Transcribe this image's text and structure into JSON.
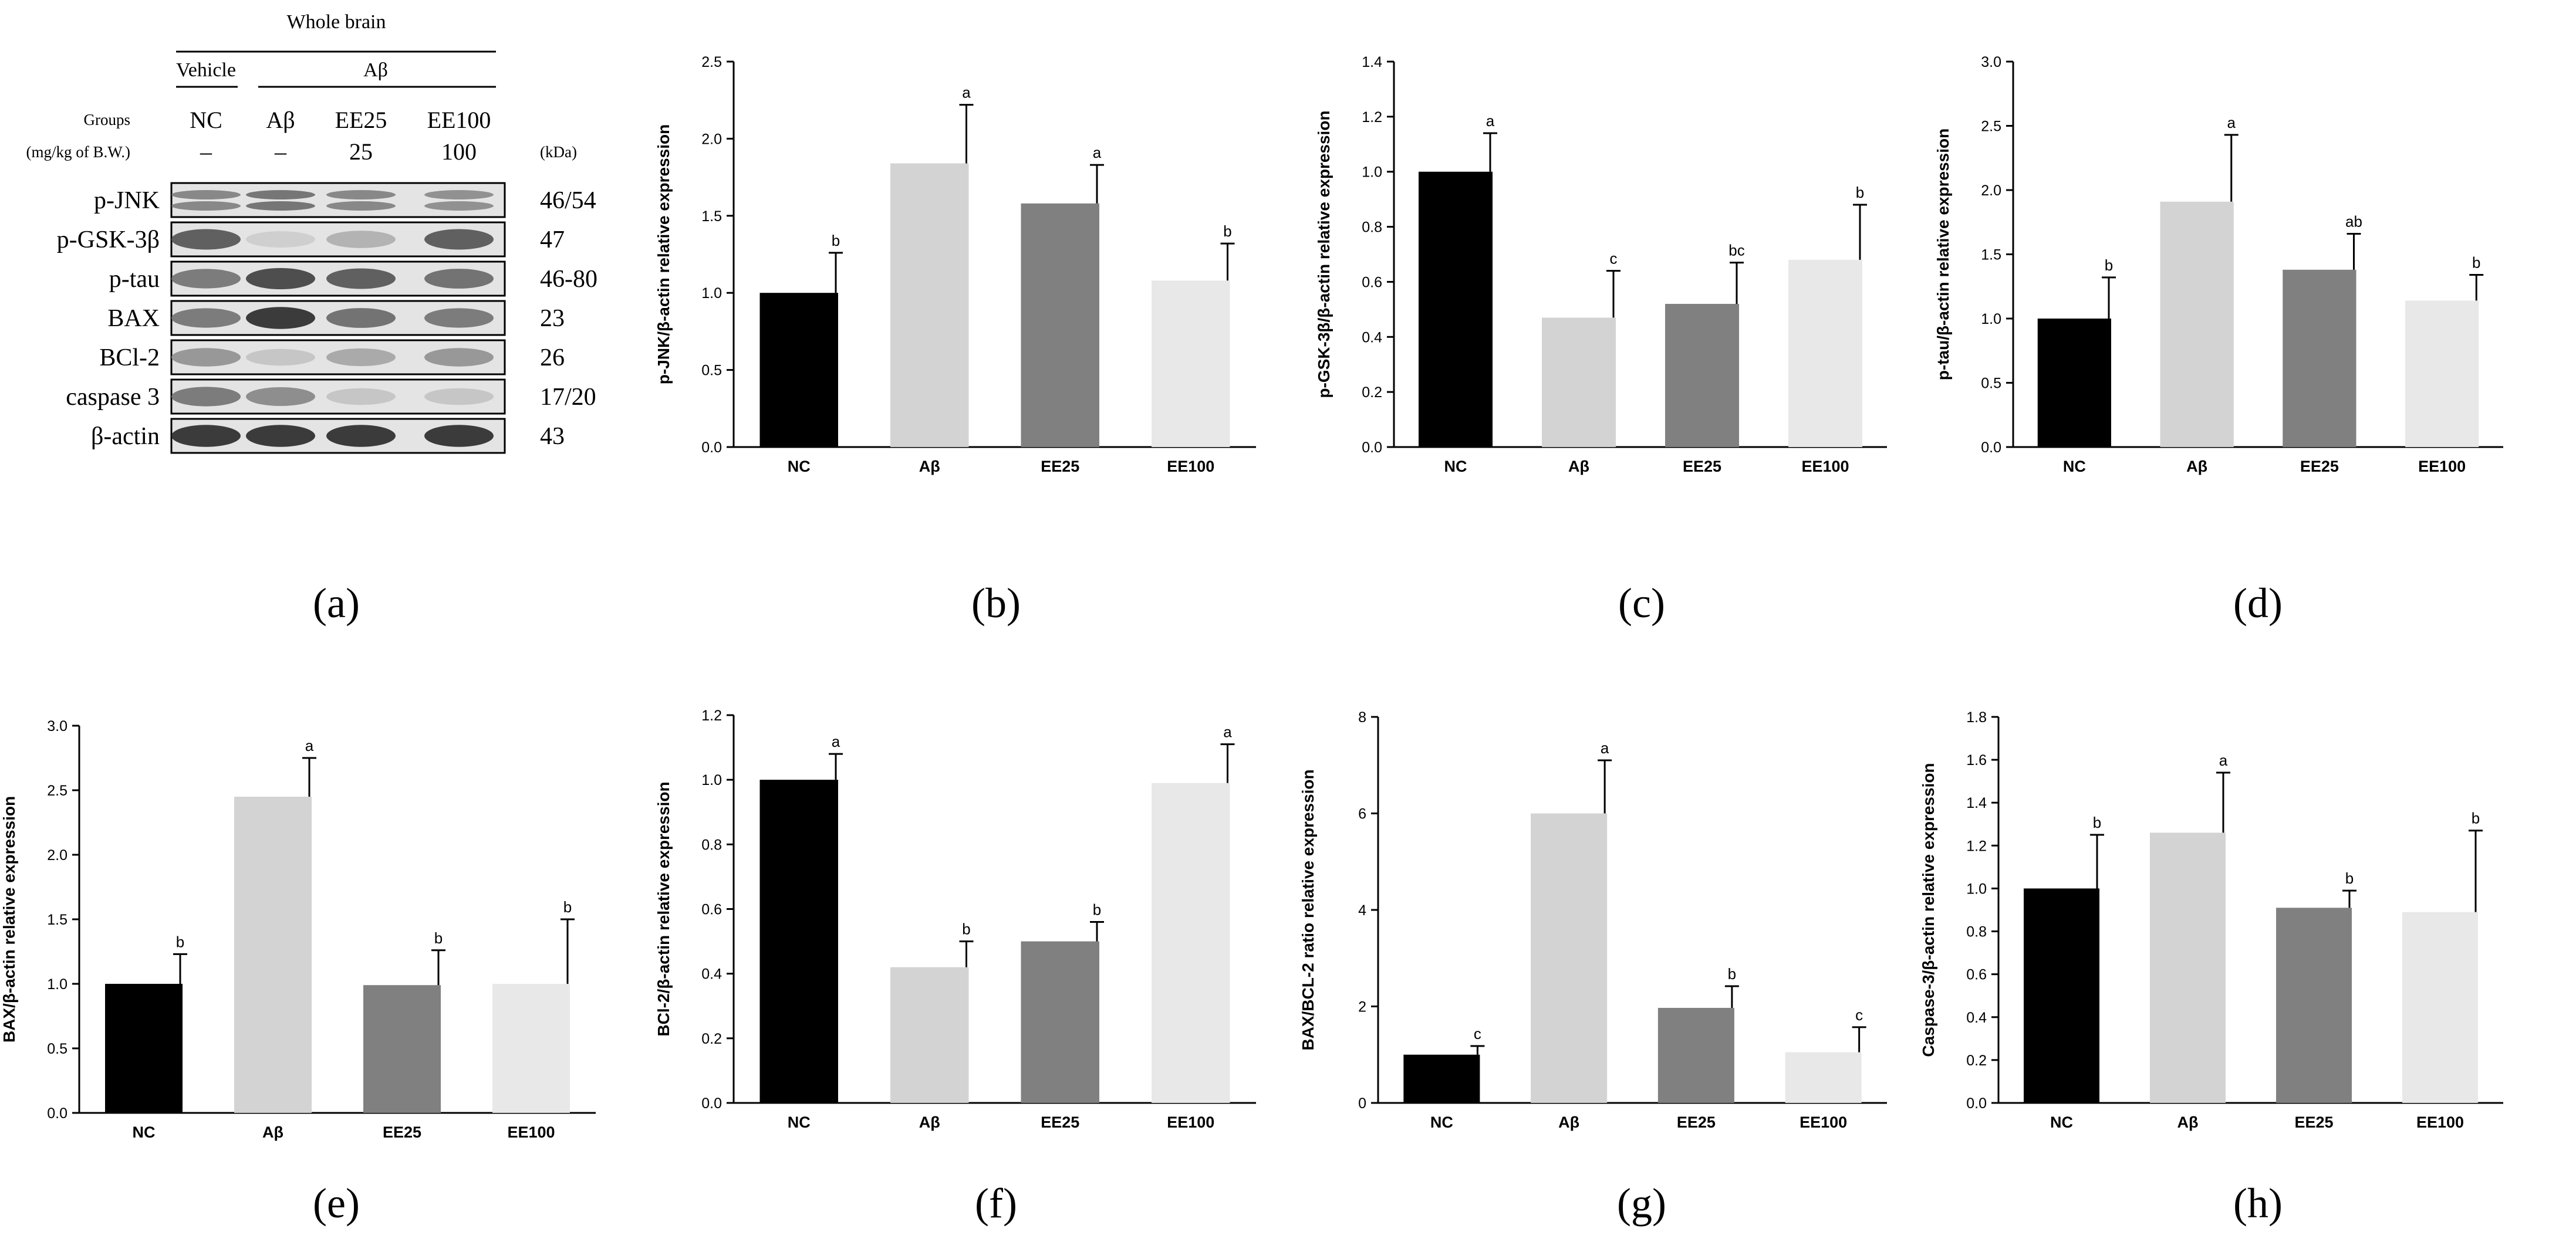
{
  "blot": {
    "header": "Whole brain",
    "vehicle_label": "Vehicle",
    "abeta_label": "Aβ",
    "groups_label": "Groups",
    "dose_label": "(mg/kg of B.W.)",
    "kda_label": "(kDa)",
    "columns": [
      {
        "group": "NC",
        "dose": "–"
      },
      {
        "group": "Aβ",
        "dose": "–"
      },
      {
        "group": "EE25",
        "dose": "25"
      },
      {
        "group": "EE100",
        "dose": "100"
      }
    ],
    "rows": [
      {
        "protein": "p-JNK",
        "kda": "46/54",
        "intensity": [
          0.55,
          0.65,
          0.55,
          0.5
        ],
        "double": true
      },
      {
        "protein": "p-GSK-3β",
        "kda": "47",
        "intensity": [
          0.75,
          0.15,
          0.3,
          0.75
        ],
        "double": false
      },
      {
        "protein": "p-tau",
        "kda": "46-80",
        "intensity": [
          0.6,
          0.85,
          0.75,
          0.65
        ],
        "double": false
      },
      {
        "protein": "BAX",
        "kda": "23",
        "intensity": [
          0.6,
          0.95,
          0.65,
          0.6
        ],
        "double": false
      },
      {
        "protein": "BCl-2",
        "kda": "26",
        "intensity": [
          0.45,
          0.2,
          0.35,
          0.45
        ],
        "double": false
      },
      {
        "protein": "caspase 3",
        "kda": "17/20",
        "intensity": [
          0.6,
          0.5,
          0.2,
          0.2
        ],
        "double": false
      },
      {
        "protein": "β-actin",
        "kda": "43",
        "intensity": [
          0.95,
          0.95,
          0.95,
          0.95
        ],
        "double": false
      }
    ]
  },
  "panel_labels": [
    "(a)",
    "(b)",
    "(c)",
    "(d)",
    "(e)",
    "(f)",
    "(g)",
    "(h)"
  ],
  "colors": [
    "#000000",
    "#d3d3d3",
    "#808080",
    "#e8e8e8"
  ],
  "chart_data": [
    {
      "panel": "b",
      "type": "bar",
      "categories": [
        "NC",
        "Aβ",
        "EE25",
        "EE100"
      ],
      "ylabel": "p-JNK/β-actin relative expression",
      "ylim": [
        0,
        2.5
      ],
      "ticks": [
        0.0,
        0.5,
        1.0,
        1.5,
        2.0,
        2.5
      ],
      "tick_labels": [
        "0.0",
        "0.5",
        "1.0",
        "1.5",
        "2.0",
        "2.5"
      ],
      "values": [
        1.0,
        1.84,
        1.58,
        1.08
      ],
      "errors": [
        0.26,
        0.38,
        0.25,
        0.24
      ],
      "letters": [
        "b",
        "a",
        "a",
        "b"
      ]
    },
    {
      "panel": "c",
      "type": "bar",
      "categories": [
        "NC",
        "Aβ",
        "EE25",
        "EE100"
      ],
      "ylabel": "p-GSK-3β/β-actin relative expression",
      "ylim": [
        0,
        1.4
      ],
      "ticks": [
        0.0,
        0.2,
        0.4,
        0.6,
        0.8,
        1.0,
        1.2,
        1.4
      ],
      "tick_labels": [
        "0.0",
        "0.2",
        "0.4",
        "0.6",
        "0.8",
        "1.0",
        "1.2",
        "1.4"
      ],
      "values": [
        1.0,
        0.47,
        0.52,
        0.68
      ],
      "errors": [
        0.14,
        0.17,
        0.15,
        0.2
      ],
      "letters": [
        "a",
        "c",
        "bc",
        "b"
      ]
    },
    {
      "panel": "d",
      "type": "bar",
      "categories": [
        "NC",
        "Aβ",
        "EE25",
        "EE100"
      ],
      "ylabel": "p-tau/β-actin relative expression",
      "ylim": [
        0,
        3.0
      ],
      "ticks": [
        0.0,
        0.5,
        1.0,
        1.5,
        2.0,
        2.5,
        3.0
      ],
      "tick_labels": [
        "0.0",
        "0.5",
        "1.0",
        "1.5",
        "2.0",
        "2.5",
        "3.0"
      ],
      "values": [
        1.0,
        1.91,
        1.38,
        1.14
      ],
      "errors": [
        0.32,
        0.52,
        0.28,
        0.2
      ],
      "letters": [
        "b",
        "a",
        "ab",
        "b"
      ]
    },
    {
      "panel": "e",
      "type": "bar",
      "categories": [
        "NC",
        "Aβ",
        "EE25",
        "EE100"
      ],
      "ylabel": "BAX/β-actin relative expression",
      "ylim": [
        0,
        3.0
      ],
      "ticks": [
        0.0,
        0.5,
        1.0,
        1.5,
        2.0,
        2.5,
        3.0
      ],
      "tick_labels": [
        "0.0",
        "0.5",
        "1.0",
        "1.5",
        "2.0",
        "2.5",
        "3.0"
      ],
      "values": [
        1.0,
        2.45,
        0.99,
        1.0
      ],
      "errors": [
        0.23,
        0.3,
        0.27,
        0.5
      ],
      "letters": [
        "b",
        "a",
        "b",
        "b"
      ]
    },
    {
      "panel": "f",
      "type": "bar",
      "categories": [
        "NC",
        "Aβ",
        "EE25",
        "EE100"
      ],
      "ylabel": "BCl-2/β-actin relative expression",
      "ylim": [
        0,
        1.2
      ],
      "ticks": [
        0.0,
        0.2,
        0.4,
        0.6,
        0.8,
        1.0,
        1.2
      ],
      "tick_labels": [
        "0.0",
        "0.2",
        "0.4",
        "0.6",
        "0.8",
        "1.0",
        "1.2"
      ],
      "values": [
        1.0,
        0.42,
        0.5,
        0.99
      ],
      "errors": [
        0.08,
        0.08,
        0.06,
        0.12
      ],
      "letters": [
        "a",
        "b",
        "b",
        "a"
      ]
    },
    {
      "panel": "g",
      "type": "bar",
      "categories": [
        "NC",
        "Aβ",
        "EE25",
        "EE100"
      ],
      "ylabel": "BAX/BCL-2 ratio relative expression",
      "ylim": [
        0,
        8
      ],
      "ticks": [
        0,
        2,
        4,
        6,
        8
      ],
      "tick_labels": [
        "0",
        "2",
        "4",
        "6",
        "8"
      ],
      "values": [
        1.0,
        6.0,
        1.97,
        1.05
      ],
      "errors": [
        0.18,
        1.1,
        0.45,
        0.52
      ],
      "letters": [
        "c",
        "a",
        "b",
        "c"
      ]
    },
    {
      "panel": "h",
      "type": "bar",
      "categories": [
        "NC",
        "Aβ",
        "EE25",
        "EE100"
      ],
      "ylabel": "Caspase-3/β-actin relative expression",
      "ylim": [
        0,
        1.8
      ],
      "ticks": [
        0.0,
        0.2,
        0.4,
        0.6,
        0.8,
        1.0,
        1.2,
        1.4,
        1.6,
        1.8
      ],
      "tick_labels": [
        "0.0",
        "0.2",
        "0.4",
        "0.6",
        "0.8",
        "1.0",
        "1.2",
        "1.4",
        "1.6",
        "1.8"
      ],
      "values": [
        1.0,
        1.26,
        0.91,
        0.89
      ],
      "errors": [
        0.25,
        0.28,
        0.08,
        0.38
      ],
      "letters": [
        "b",
        "a",
        "b",
        "b"
      ]
    }
  ]
}
